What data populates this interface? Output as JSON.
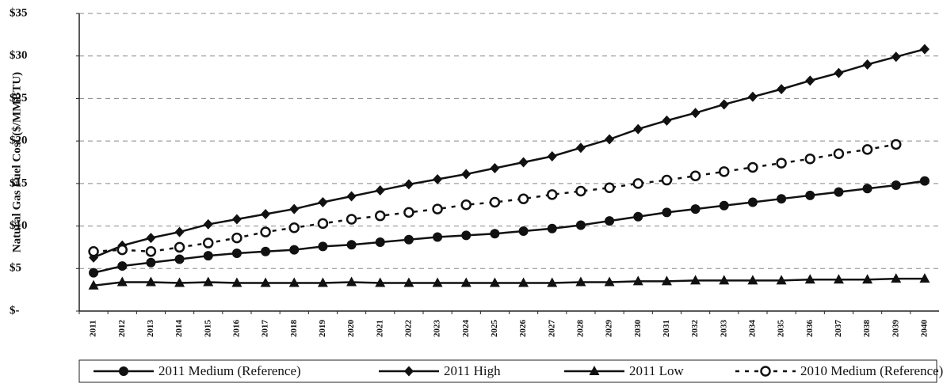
{
  "chart_data": {
    "type": "line",
    "y_label": "Natural Gas Fuel Cost ($/MMBTU)",
    "categories": [
      "2011",
      "2012",
      "2013",
      "2014",
      "2015",
      "2016",
      "2017",
      "2018",
      "2019",
      "2020",
      "2021",
      "2022",
      "2023",
      "2024",
      "2025",
      "2026",
      "2027",
      "2028",
      "2029",
      "2030",
      "2031",
      "2032",
      "2033",
      "2034",
      "2035",
      "2036",
      "2037",
      "2038",
      "2039",
      "2040"
    ],
    "series": [
      {
        "name": "2011 Medium (Reference)",
        "color": "#111111",
        "marker": "circle",
        "dashed": false,
        "values": [
          4.5,
          5.3,
          5.7,
          6.1,
          6.5,
          6.8,
          7.0,
          7.2,
          7.6,
          7.8,
          8.1,
          8.4,
          8.7,
          8.9,
          9.1,
          9.4,
          9.7,
          10.1,
          10.6,
          11.1,
          11.6,
          12.0,
          12.4,
          12.8,
          13.2,
          13.6,
          14.0,
          14.4,
          14.8,
          15.3
        ]
      },
      {
        "name": "2011 High",
        "color": "#111111",
        "marker": "diamond",
        "dashed": false,
        "values": [
          6.3,
          7.7,
          8.6,
          9.3,
          10.2,
          10.8,
          11.4,
          12.0,
          12.8,
          13.5,
          14.2,
          14.9,
          15.5,
          16.1,
          16.8,
          17.5,
          18.2,
          19.2,
          20.2,
          21.4,
          22.4,
          23.3,
          24.3,
          25.2,
          26.1,
          27.1,
          28.0,
          29.0,
          29.9,
          30.8
        ]
      },
      {
        "name": "2011 Low",
        "color": "#111111",
        "marker": "triangle",
        "dashed": false,
        "values": [
          3.0,
          3.4,
          3.4,
          3.3,
          3.4,
          3.3,
          3.3,
          3.3,
          3.3,
          3.4,
          3.3,
          3.3,
          3.3,
          3.3,
          3.3,
          3.3,
          3.3,
          3.4,
          3.4,
          3.5,
          3.5,
          3.6,
          3.6,
          3.6,
          3.6,
          3.7,
          3.7,
          3.7,
          3.8,
          3.8
        ]
      },
      {
        "name": "2010 Medium (Reference)",
        "color": "#111111",
        "marker": "open-circle",
        "dashed": true,
        "values": [
          7.0,
          7.2,
          7.0,
          7.5,
          8.0,
          8.6,
          9.3,
          9.8,
          10.3,
          10.8,
          11.2,
          11.6,
          12.0,
          12.5,
          12.8,
          13.2,
          13.7,
          14.1,
          14.5,
          15.0,
          15.4,
          15.9,
          16.4,
          16.9,
          17.4,
          17.9,
          18.5,
          19.0,
          19.6,
          null
        ]
      }
    ],
    "ylim": [
      0,
      35
    ],
    "yticks": [
      {
        "value": 0,
        "label": "$-"
      },
      {
        "value": 5,
        "label": "$5"
      },
      {
        "value": 10,
        "label": "$10"
      },
      {
        "value": 15,
        "label": "$15"
      },
      {
        "value": 20,
        "label": "$20"
      },
      {
        "value": 25,
        "label": "$25"
      },
      {
        "value": 30,
        "label": "$30"
      },
      {
        "value": 35,
        "label": "$35"
      }
    ],
    "grid": true,
    "legend": "bottom"
  }
}
